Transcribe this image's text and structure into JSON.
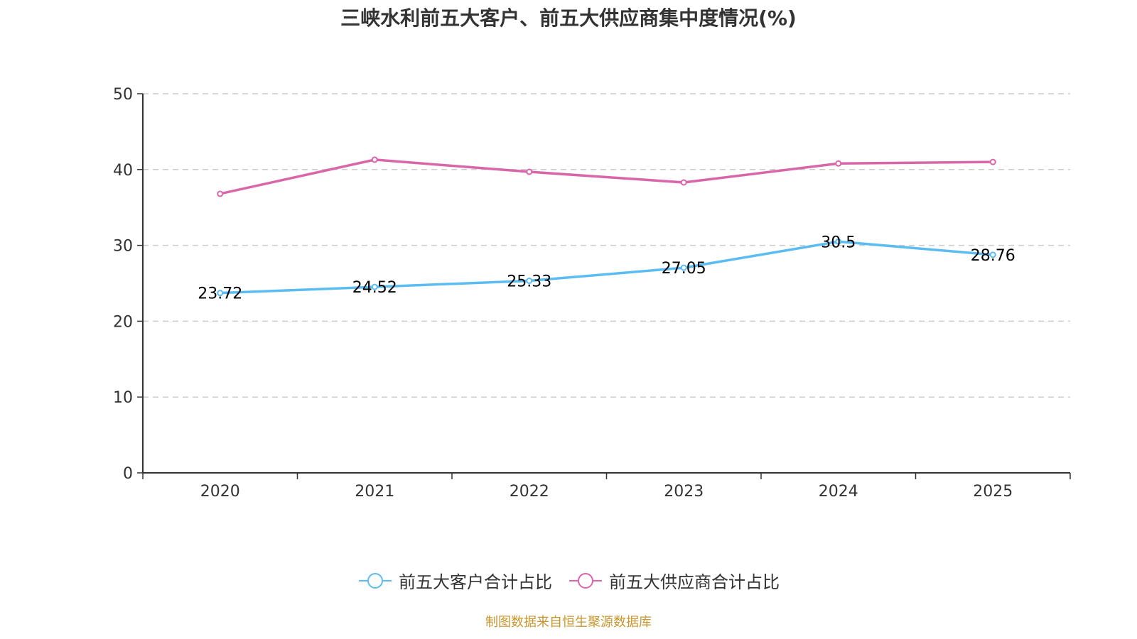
{
  "chart_data": {
    "type": "line",
    "title": "三峡水利前五大客户、前五大供应商集中度情况(%)",
    "xlabel": "",
    "ylabel": "",
    "categories": [
      "2020",
      "2021",
      "2022",
      "2023",
      "2024",
      "2025"
    ],
    "ylim": [
      0,
      50
    ],
    "yticks": [
      0,
      10,
      20,
      30,
      40,
      50
    ],
    "grid": true,
    "legend_position": "bottom",
    "series": [
      {
        "name": "前五大客户合计占比",
        "color": "#5bbcf2",
        "values": [
          23.72,
          24.52,
          25.33,
          27.05,
          30.5,
          28.76
        ],
        "labels": [
          "23.72",
          "24.52",
          "25.33",
          "27.05",
          "30.5",
          "28.76"
        ],
        "show_labels": true
      },
      {
        "name": "前五大供应商合计占比",
        "color": "#d966a8",
        "values": [
          36.8,
          41.3,
          39.7,
          38.3,
          40.8,
          41.0
        ],
        "show_labels": false
      }
    ]
  },
  "source_note": "制图数据来自恒生聚源数据库"
}
